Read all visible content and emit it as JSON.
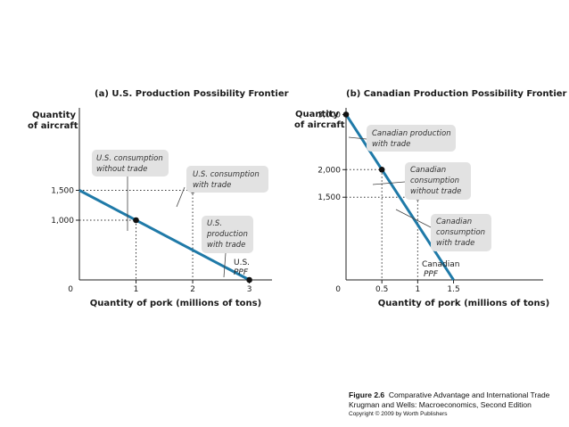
{
  "caption": {
    "figure_number": "Figure 2.6",
    "figure_title": "Comparative Advantage and International Trade",
    "book": "Krugman and Wells: Macroeconomics, Second Edition",
    "copyright": "Copyright © 2009 by Worth Publishers"
  },
  "colors": {
    "ppf_line": "#1f7aa8",
    "box_fill": "#e2e2e2",
    "axis": "#222222"
  },
  "chart_data": [
    {
      "type": "line",
      "title": "(a) U.S. Production Possibility Frontier",
      "ylabel_lines": [
        "Quantity",
        "of aircraft"
      ],
      "xlabel": "Quantity of pork (millions of tons)",
      "xlim": [
        0,
        3.4
      ],
      "ylim": [
        0,
        3000
      ],
      "origin_label": "0",
      "x_ticks": [
        {
          "value": 1,
          "label": "1"
        },
        {
          "value": 2,
          "label": "2"
        },
        {
          "value": 3,
          "label": "3"
        }
      ],
      "y_ticks": [
        {
          "value": 1000,
          "label": "1,000"
        },
        {
          "value": 1500,
          "label": "1,500"
        }
      ],
      "series": [
        {
          "name": "U.S. PPF",
          "x": [
            0,
            3
          ],
          "y": [
            1500,
            0
          ]
        }
      ],
      "ppf_label_lines": [
        "U.S.",
        "PPF"
      ],
      "points": [
        {
          "x": 1,
          "y": 1000,
          "label_lines": [
            "U.S. consumption",
            "without trade"
          ]
        },
        {
          "x": 2,
          "y": 1500,
          "label_lines": [
            "U.S. consumption",
            "with trade"
          ]
        },
        {
          "x": 3,
          "y": 0,
          "label_lines": [
            "U.S.",
            "production",
            "with trade"
          ]
        }
      ]
    },
    {
      "type": "line",
      "title": "(b) Canadian Production Possibility Frontier",
      "ylabel_lines": [
        "Quantity",
        "of aircraft"
      ],
      "xlabel": "Quantity of pork (millions of tons)",
      "xlim": [
        0,
        2.75
      ],
      "ylim": [
        0,
        3250
      ],
      "origin_label": "0",
      "x_ticks": [
        {
          "value": 0.5,
          "label": "0.5"
        },
        {
          "value": 1,
          "label": "1"
        },
        {
          "value": 1.5,
          "label": "1.5"
        }
      ],
      "y_ticks": [
        {
          "value": 1500,
          "label": "1,500"
        },
        {
          "value": 2000,
          "label": "2,000"
        },
        {
          "value": 3000,
          "label": "3,000"
        }
      ],
      "series": [
        {
          "name": "Canadian PPF",
          "x": [
            0,
            1.5
          ],
          "y": [
            3000,
            0
          ]
        }
      ],
      "ppf_label_lines": [
        "Canadian",
        "PPF"
      ],
      "points": [
        {
          "x": 0,
          "y": 3000,
          "label_lines": [
            "Canadian production",
            "with trade"
          ]
        },
        {
          "x": 0.5,
          "y": 2000,
          "label_lines": [
            "Canadian",
            "consumption",
            "without trade"
          ]
        },
        {
          "x": 1,
          "y": 1500,
          "label_lines": [
            "Canadian",
            "consumption",
            "with trade"
          ]
        }
      ]
    }
  ]
}
